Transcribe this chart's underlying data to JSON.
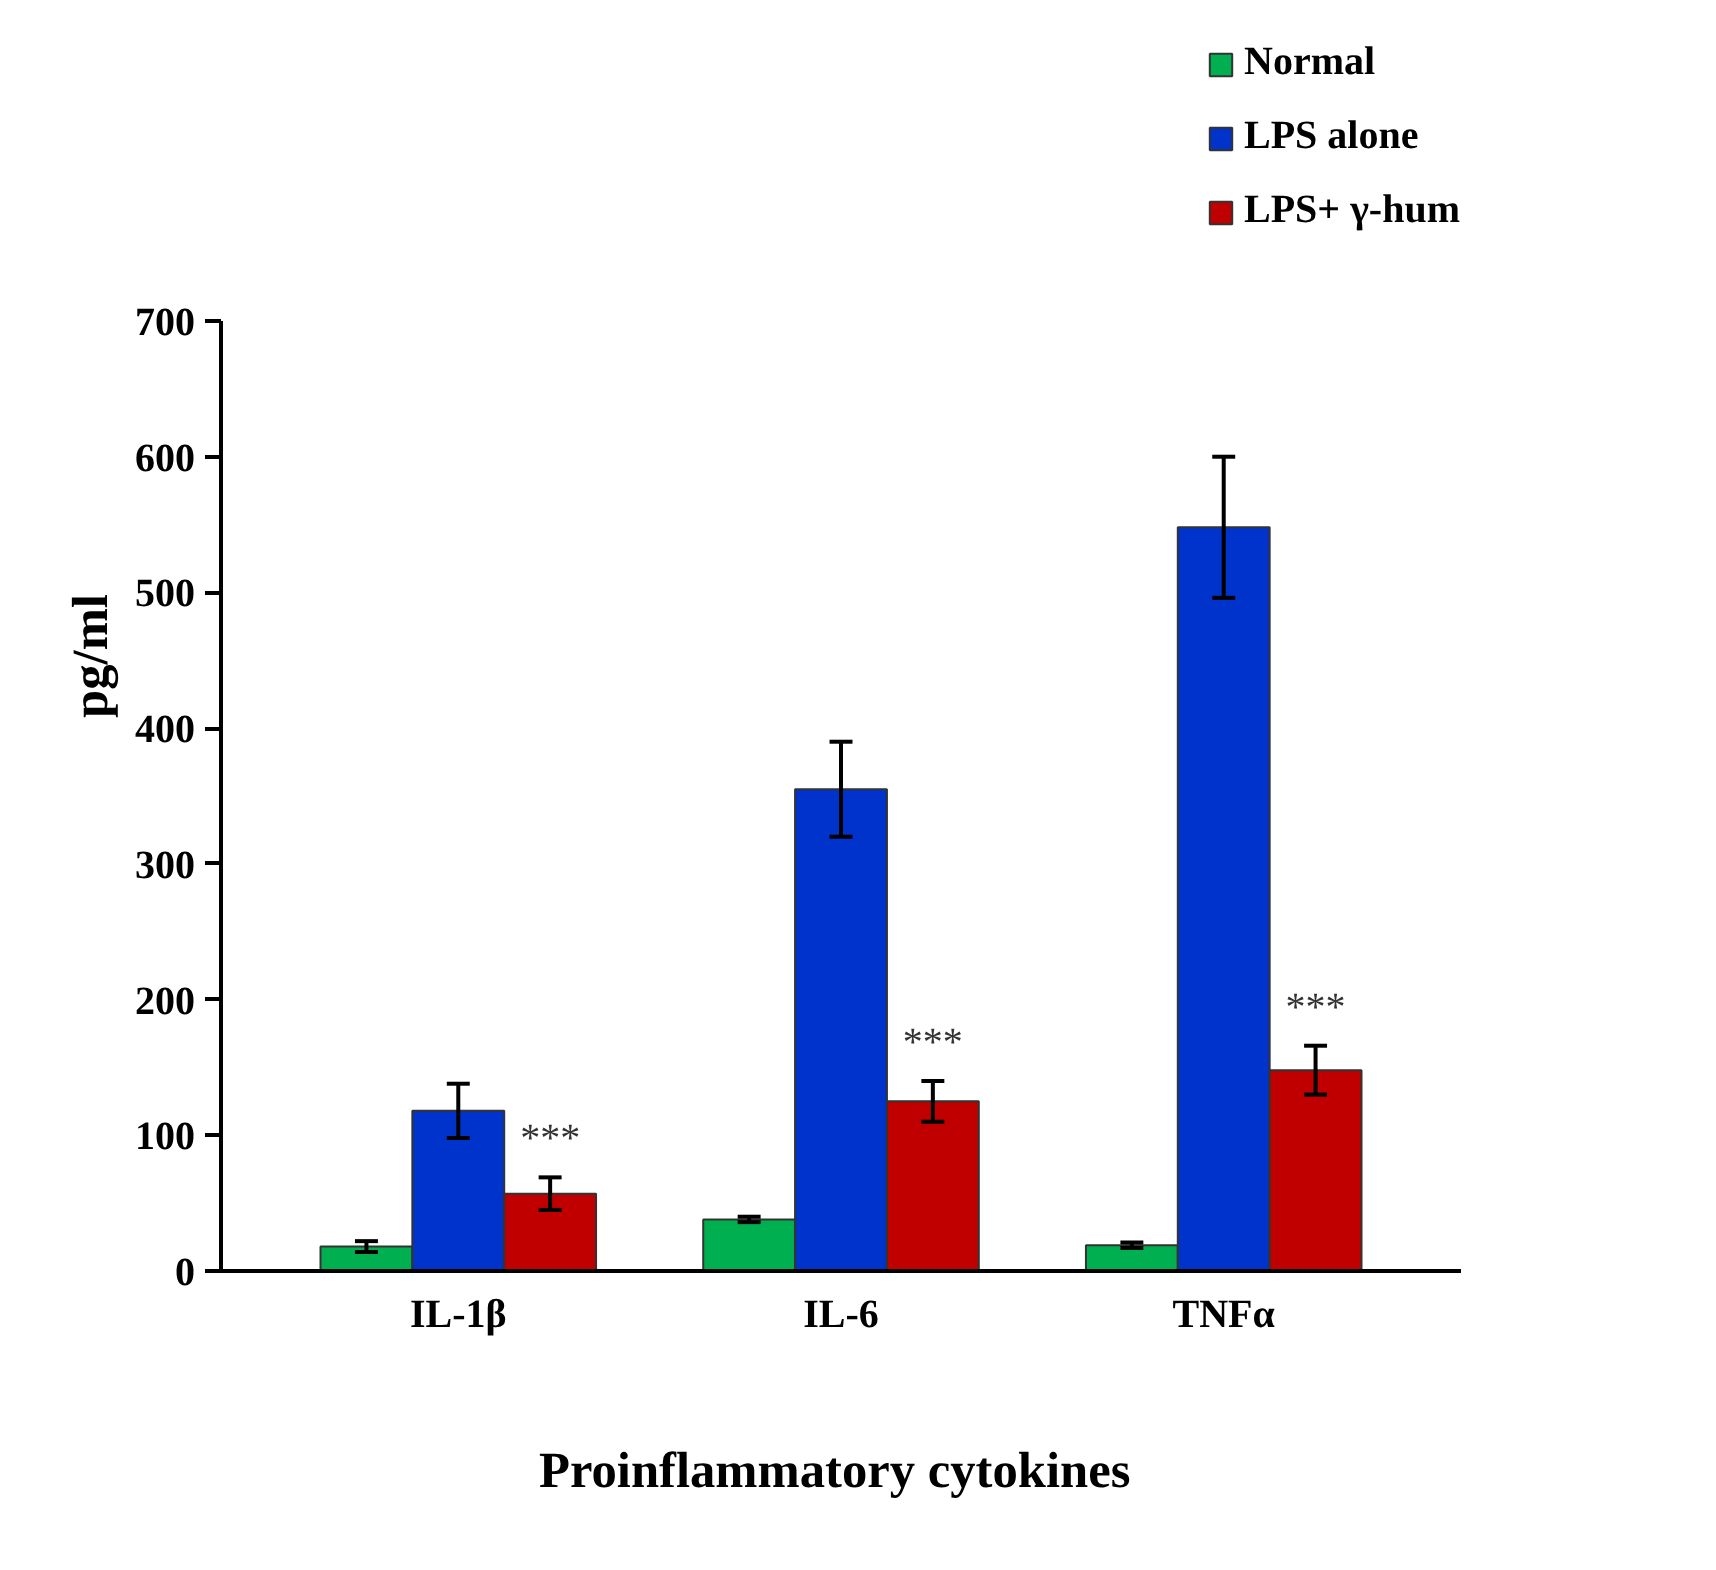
{
  "chart_data": {
    "type": "bar",
    "xlabel": "Proinflammatory  cytokines",
    "ylabel": "pg/ml",
    "categories": [
      "IL-1β",
      "IL-6",
      "TNFα"
    ],
    "series": [
      {
        "name": "Normal",
        "color": "#00b050",
        "values": [
          18,
          38,
          19
        ],
        "errors": [
          4,
          2,
          2
        ]
      },
      {
        "name": "LPS alone",
        "color": "#0033cc",
        "values": [
          118,
          355,
          548
        ],
        "errors": [
          20,
          35,
          52
        ]
      },
      {
        "name": "LPS+ γ-hum",
        "color": "#c00000",
        "values": [
          57,
          125,
          148
        ],
        "errors": [
          12,
          15,
          18
        ]
      }
    ],
    "ylim": [
      0,
      700
    ],
    "yticks": [
      0,
      100,
      200,
      300,
      400,
      500,
      600,
      700
    ],
    "grid": false,
    "legend": "top right",
    "annotations": [
      "***",
      "***",
      "***"
    ]
  }
}
